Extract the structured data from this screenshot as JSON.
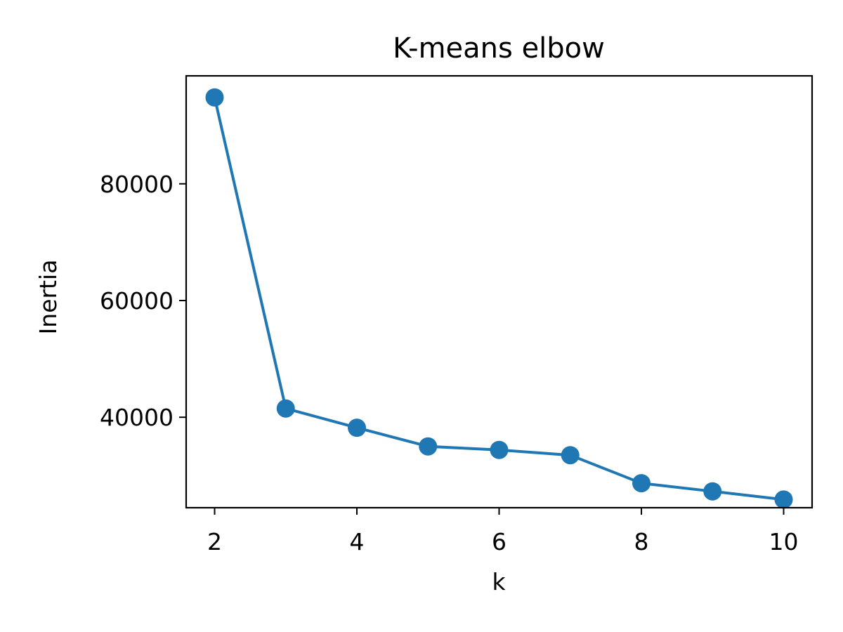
{
  "chart_data": {
    "type": "line",
    "title": "K-means elbow",
    "xlabel": "k",
    "ylabel": "Inertia",
    "x": [
      2,
      3,
      4,
      5,
      6,
      7,
      8,
      9,
      10
    ],
    "series": [
      {
        "values": [
          94800,
          41500,
          38200,
          35000,
          34400,
          33500,
          28700,
          27300,
          25900
        ],
        "color": "#1f77b4",
        "marker": "circle"
      }
    ],
    "xlim": [
      1.6,
      10.4
    ],
    "ylim": [
      24500,
      98500
    ],
    "xticks": [
      2,
      4,
      6,
      8,
      10
    ],
    "xtick_labels": [
      "2",
      "4",
      "6",
      "8",
      "10"
    ],
    "yticks": [
      40000,
      60000,
      80000
    ],
    "ytick_labels": [
      "40000",
      "60000",
      "80000"
    ],
    "grid": false,
    "legend": "none"
  }
}
